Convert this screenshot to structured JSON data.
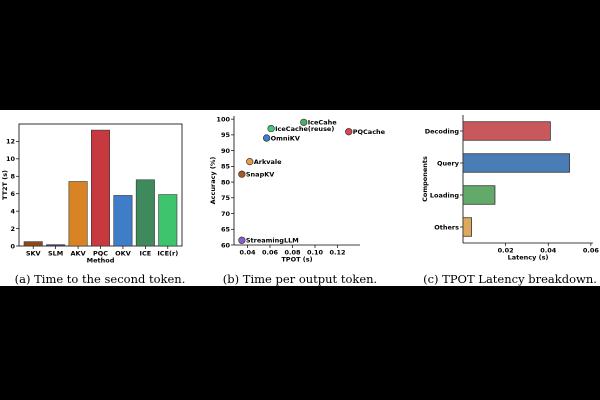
{
  "chart_data": [
    {
      "type": "bar",
      "categories": [
        "SKV",
        "SLM",
        "AKV",
        "PQC",
        "OKV",
        "ICE",
        "ICE(r)"
      ],
      "values": [
        0.5,
        0.15,
        7.4,
        13.3,
        5.8,
        7.6,
        5.9
      ],
      "colors": [
        "#8b4a1c",
        "#5b2f86",
        "#d98424",
        "#c63a3f",
        "#3f7dc8",
        "#3f8a5d",
        "#3ec46d"
      ],
      "xlabel": "Method",
      "ylabel": "TT2T (s)",
      "ylim": [
        0,
        14
      ],
      "yticks": [
        0,
        2,
        4,
        6,
        8,
        10,
        12
      ],
      "grid": false,
      "caption": "(a) Time to the second token."
    },
    {
      "type": "scatter",
      "points": [
        {
          "label": "IceCahe",
          "x": 0.09,
          "y": 99,
          "color": "#4caf63"
        },
        {
          "label": "IceCache(reuse)",
          "x": 0.061,
          "y": 97,
          "color": "#46c87a"
        },
        {
          "label": "PQCache",
          "x": 0.13,
          "y": 96,
          "color": "#d9484c"
        },
        {
          "label": "OmniKV",
          "x": 0.057,
          "y": 94,
          "color": "#3f7dd0"
        },
        {
          "label": "Arkvale",
          "x": 0.042,
          "y": 86.5,
          "color": "#e59b43"
        },
        {
          "label": "SnapKV",
          "x": 0.035,
          "y": 82.5,
          "color": "#a65a25"
        },
        {
          "label": "StreamingLLM",
          "x": 0.035,
          "y": 61.5,
          "color": "#8b5fcb"
        }
      ],
      "xlabel": "TPOT (s)",
      "ylabel": "Accuracy (%)",
      "xlim": [
        0.028,
        0.14
      ],
      "ylim": [
        60,
        101
      ],
      "xticks": [
        0.04,
        0.06,
        0.08,
        0.1,
        0.12
      ],
      "xtick_labels": [
        "0.04",
        "0.06",
        "0.08",
        "0.10",
        "0.12"
      ],
      "yticks": [
        60,
        65,
        70,
        75,
        80,
        85,
        90,
        95,
        100
      ],
      "grid": false,
      "caption": "(b) Time per output token."
    },
    {
      "type": "bar",
      "orientation": "horizontal",
      "categories": [
        "Decoding",
        "Query",
        "Loading",
        "Others"
      ],
      "values": [
        0.041,
        0.05,
        0.015,
        0.004
      ],
      "colors": [
        "#c9585d",
        "#4a7cb5",
        "#63aa6a",
        "#dea85e"
      ],
      "xlabel": "Latency (s)",
      "ylabel": "Components",
      "xlim": [
        0,
        0.061
      ],
      "xticks": [
        0.02,
        0.04,
        0.06
      ],
      "grid": false,
      "caption": "(c) TPOT Latency breakdown."
    }
  ]
}
